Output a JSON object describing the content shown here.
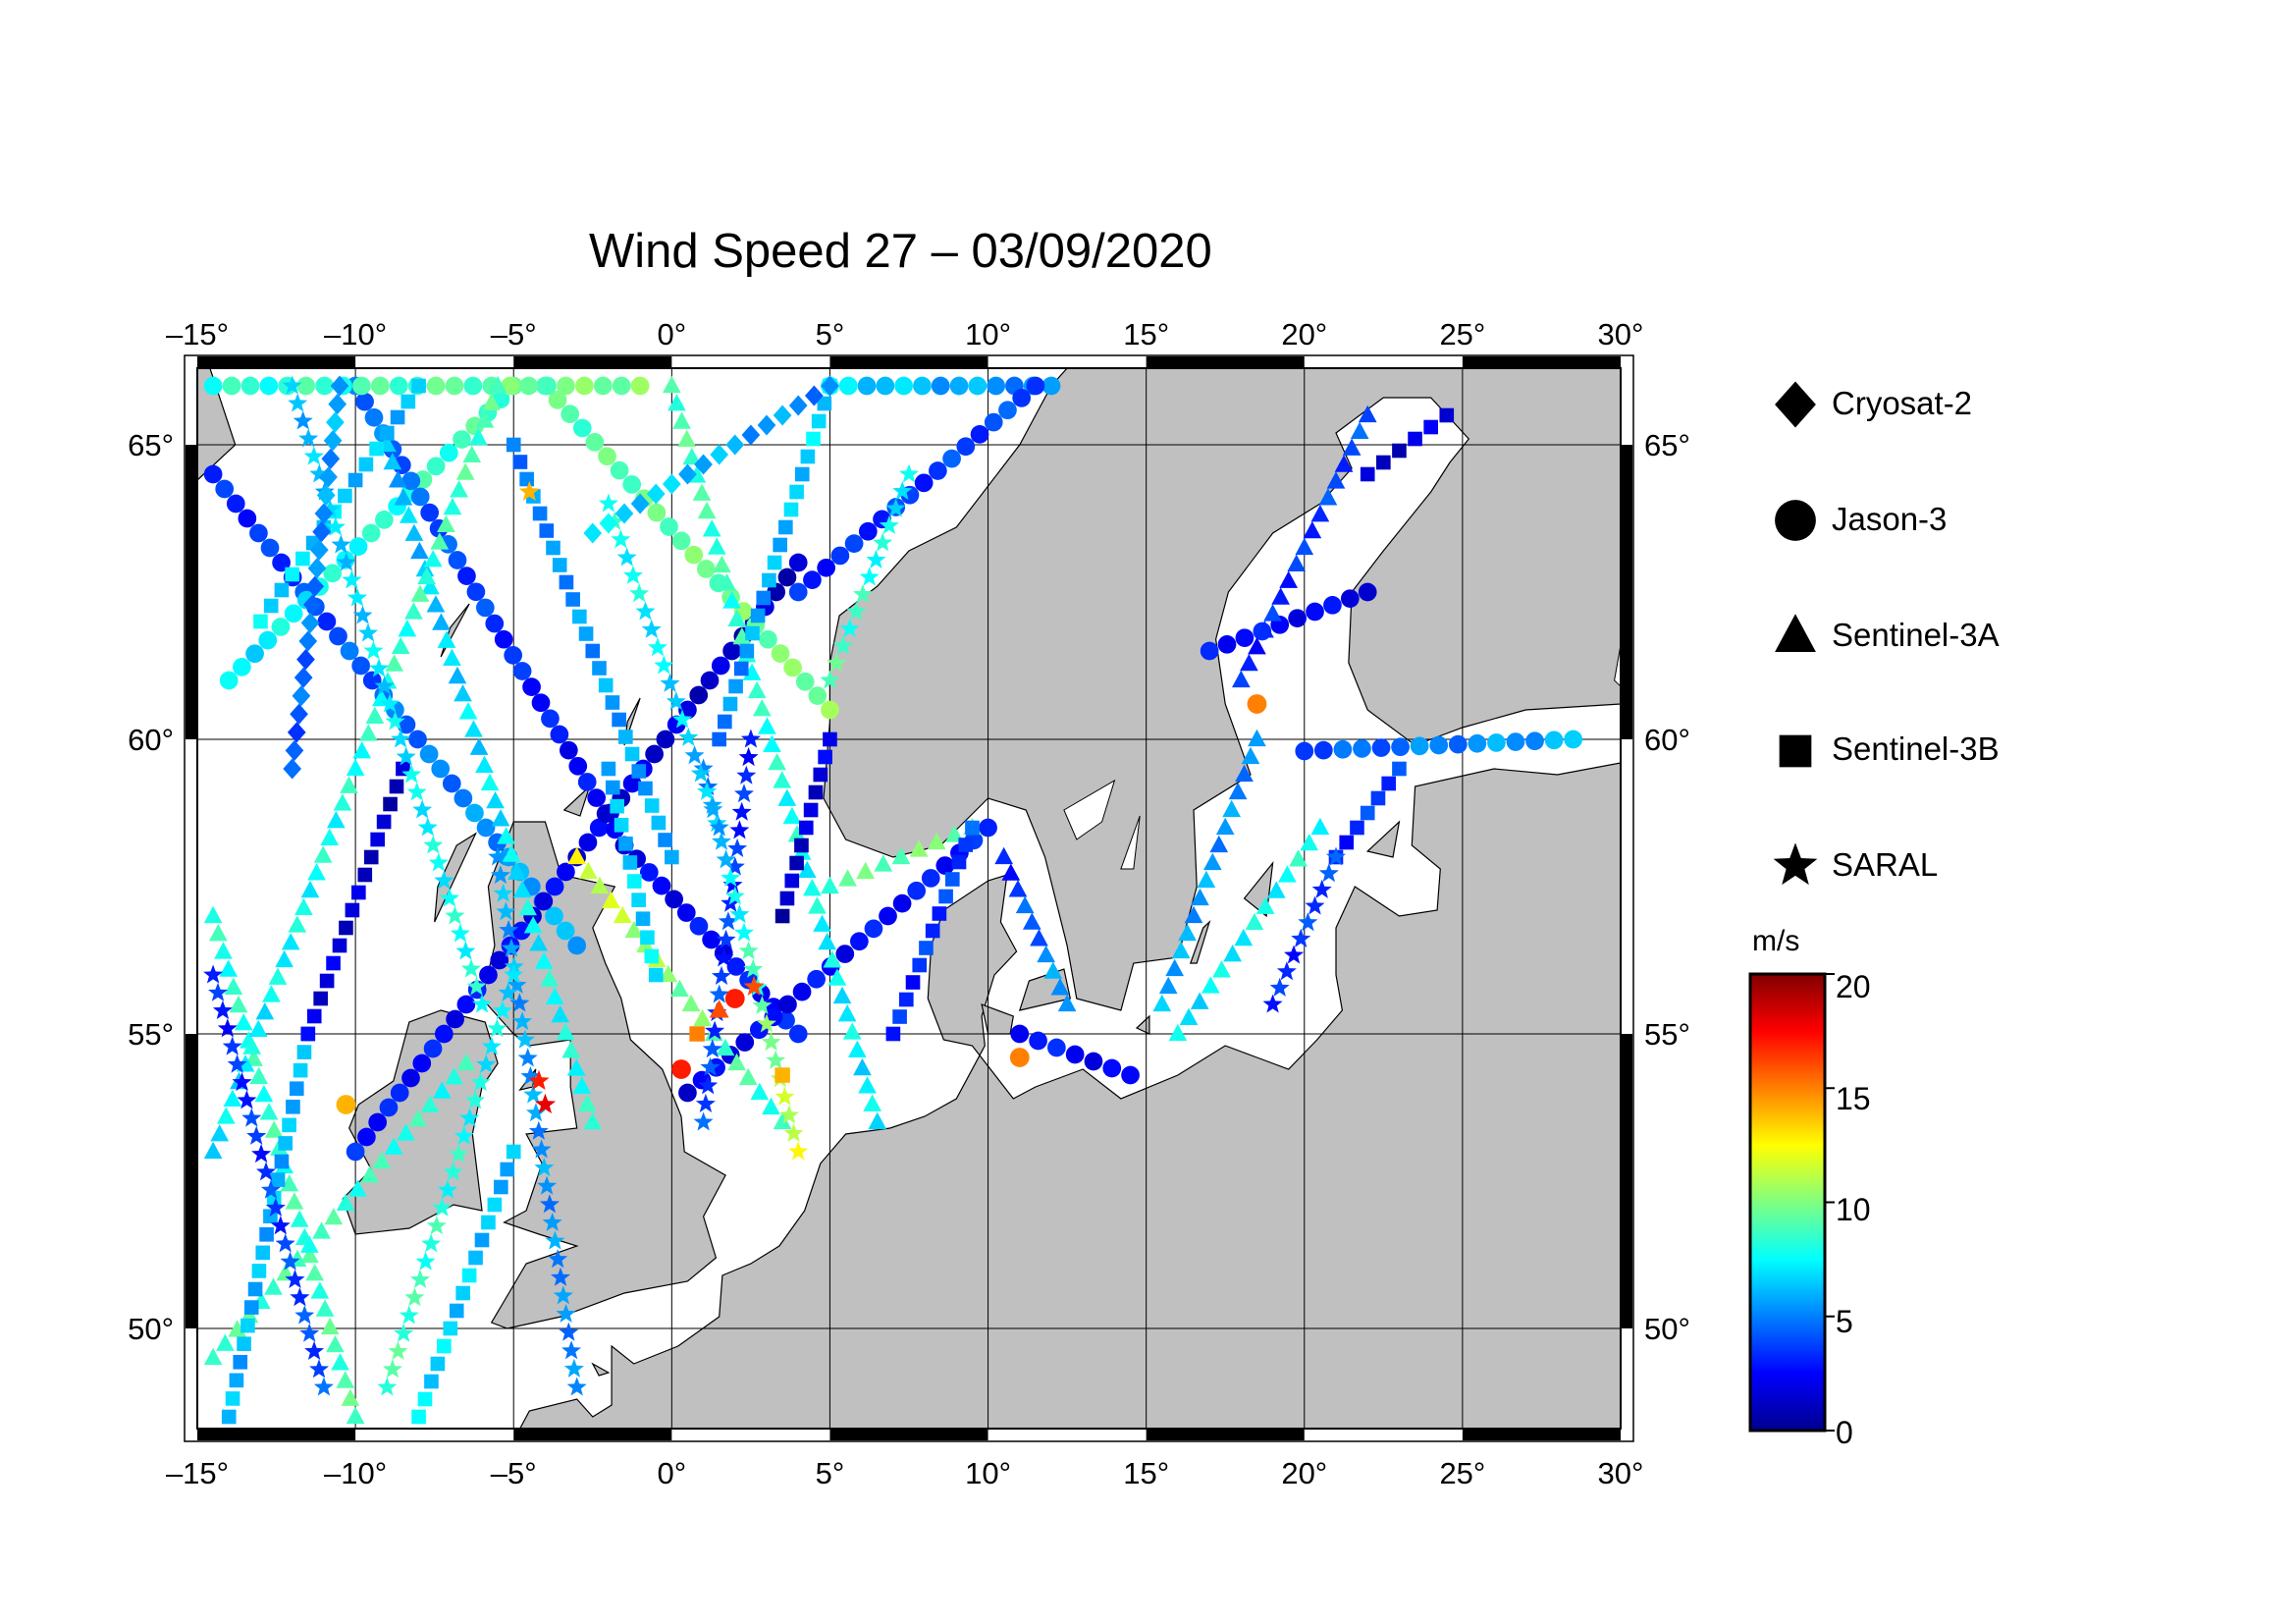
{
  "title": "Wind Speed 27 – 03/09/2020",
  "map": {
    "lon_range": [
      -15,
      30
    ],
    "lat_range": [
      48.3,
      66.3
    ],
    "lon_ticks": [
      -15,
      -10,
      -5,
      0,
      5,
      10,
      15,
      20,
      25,
      30
    ],
    "lat_ticks": [
      50,
      55,
      60,
      65
    ],
    "lon_tick_labels": [
      "–15°",
      "–10°",
      "–5°",
      "0°",
      "5°",
      "10°",
      "15°",
      "20°",
      "25°",
      "30°"
    ],
    "lat_tick_labels": [
      "50°",
      "55°",
      "60°",
      "65°"
    ],
    "land_color": "#c0c0c0",
    "sea_color": "#ffffff",
    "grid": true
  },
  "legend": {
    "items": [
      {
        "label": "Cryosat-2",
        "marker": "diamond-icon"
      },
      {
        "label": "Jason-3",
        "marker": "circle-icon"
      },
      {
        "label": "Sentinel-3A",
        "marker": "triangle-icon"
      },
      {
        "label": "Sentinel-3B",
        "marker": "square-icon"
      },
      {
        "label": "SARAL",
        "marker": "star-icon"
      }
    ]
  },
  "colorbar": {
    "unit": "m/s",
    "min": 0,
    "max": 20,
    "ticks": [
      0,
      5,
      10,
      15,
      20
    ],
    "tick_labels": [
      "0",
      "5",
      "10",
      "15",
      "20"
    ],
    "colors": [
      "#00008f",
      "#0000ff",
      "#0080ff",
      "#00ffff",
      "#80ff80",
      "#ffff00",
      "#ff8000",
      "#ff0000",
      "#800000"
    ]
  },
  "chart_data": {
    "type": "scatter",
    "title": "Wind Speed 27 – 03/09/2020",
    "xlabel": "",
    "ylabel": "",
    "xlim": [
      -15,
      30
    ],
    "ylim": [
      48.3,
      66.3
    ],
    "series": [
      {
        "name": "Jason-3",
        "marker": "circle",
        "tracks": [
          {
            "from": [
              -14.5,
              64.5
            ],
            "to": [
              -3.0,
              56.5
            ],
            "v0": 3,
            "v1": 6
          },
          {
            "from": [
              -14.0,
              61.0
            ],
            "to": [
              -5.0,
              66.0
            ],
            "v0": 7,
            "v1": 9
          },
          {
            "from": [
              -10.0,
              53.0
            ],
            "to": [
              4.0,
              63.0
            ],
            "v0": 3,
            "v1": 1
          },
          {
            "from": [
              -10.0,
              66.0
            ],
            "to": [
              -1.5,
              58.2
            ],
            "v0": 5,
            "v1": 2
          },
          {
            "from": [
              -1.5,
              58.2
            ],
            "to": [
              4.0,
              55.0
            ],
            "v0": 2,
            "v1": 3
          },
          {
            "from": [
              0.5,
              54.0
            ],
            "to": [
              10.0,
              58.5
            ],
            "v0": 2,
            "v1": 3
          },
          {
            "from": [
              -4.0,
              66.0
            ],
            "to": [
              5.0,
              60.5
            ],
            "v0": 9,
            "v1": 10
          },
          {
            "from": [
              5.0,
              66.0
            ],
            "to": [
              12.0,
              66.0
            ],
            "v0": 7,
            "v1": 5
          },
          {
            "from": [
              4.0,
              62.5
            ],
            "to": [
              11.5,
              66.0
            ],
            "v0": 3,
            "v1": 4
          },
          {
            "from": [
              17.0,
              61.5
            ],
            "to": [
              22.0,
              62.5
            ],
            "v0": 3,
            "v1": 2
          },
          {
            "from": [
              20.0,
              59.8
            ],
            "to": [
              28.5,
              60.0
            ],
            "v0": 4,
            "v1": 6
          },
          {
            "from": [
              11.0,
              55.0
            ],
            "to": [
              14.5,
              54.3
            ],
            "v0": 3,
            "v1": 2
          },
          {
            "from": [
              -14.5,
              66.0
            ],
            "to": [
              -1.0,
              66.0
            ],
            "v0": 8,
            "v1": 10
          }
        ]
      },
      {
        "name": "Sentinel-3A",
        "marker": "triangle",
        "tracks": [
          {
            "from": [
              -14.5,
              57.0
            ],
            "to": [
              -10.0,
              48.5
            ],
            "v0": 8,
            "v1": 9
          },
          {
            "from": [
              -9.0,
              65.0
            ],
            "to": [
              -2.5,
              53.5
            ],
            "v0": 6,
            "v1": 8
          },
          {
            "from": [
              -3.0,
              58.0
            ],
            "to": [
              3.5,
              53.5
            ],
            "v0": 12,
            "v1": 8
          },
          {
            "from": [
              0.0,
              66.0
            ],
            "to": [
              6.5,
              53.5
            ],
            "v0": 9,
            "v1": 7
          },
          {
            "from": [
              -14.5,
              53.0
            ],
            "to": [
              -5.5,
              66.0
            ],
            "v0": 7,
            "v1": 9
          },
          {
            "from": [
              5.0,
              57.5
            ],
            "to": [
              9.5,
              58.5
            ],
            "v0": 9,
            "v1": 10
          },
          {
            "from": [
              22.0,
              65.5
            ],
            "to": [
              18.0,
              61.0
            ],
            "v0": 4,
            "v1": 3
          },
          {
            "from": [
              18.5,
              60.0
            ],
            "to": [
              15.5,
              55.5
            ],
            "v0": 5,
            "v1": 6
          },
          {
            "from": [
              16.0,
              55.0
            ],
            "to": [
              20.5,
              58.5
            ],
            "v0": 7,
            "v1": 8
          },
          {
            "from": [
              10.5,
              58.0
            ],
            "to": [
              12.5,
              55.5
            ],
            "v0": 3,
            "v1": 6
          },
          {
            "from": [
              -14.5,
              49.5
            ],
            "to": [
              -6.5,
              54.5
            ],
            "v0": 9,
            "v1": 8
          }
        ]
      },
      {
        "name": "Sentinel-3B",
        "marker": "square",
        "tracks": [
          {
            "from": [
              -14.0,
              48.5
            ],
            "to": [
              -11.5,
              55.0
            ],
            "v0": 6,
            "v1": 6
          },
          {
            "from": [
              -11.5,
              55.0
            ],
            "to": [
              -8.5,
              59.5
            ],
            "v0": 2,
            "v1": 1
          },
          {
            "from": [
              -13.0,
              62.0
            ],
            "to": [
              -8.0,
              66.0
            ],
            "v0": 7,
            "v1": 6
          },
          {
            "from": [
              -5.0,
              65.0
            ],
            "to": [
              0.0,
              58.0
            ],
            "v0": 5,
            "v1": 6
          },
          {
            "from": [
              1.5,
              60.0
            ],
            "to": [
              5.0,
              66.0
            ],
            "v0": 5,
            "v1": 7
          },
          {
            "from": [
              3.5,
              57.0
            ],
            "to": [
              5.0,
              60.0
            ],
            "v0": 1,
            "v1": 2
          },
          {
            "from": [
              7.0,
              55.0
            ],
            "to": [
              9.5,
              58.5
            ],
            "v0": 3,
            "v1": 4
          },
          {
            "from": [
              -8.0,
              48.5
            ],
            "to": [
              -5.0,
              53.0
            ],
            "v0": 7,
            "v1": 6
          },
          {
            "from": [
              22.0,
              64.5
            ],
            "to": [
              24.5,
              65.5
            ],
            "v0": 1,
            "v1": 2
          },
          {
            "from": [
              21.0,
              58.0
            ],
            "to": [
              23.0,
              59.5
            ],
            "v0": 3,
            "v1": 4
          },
          {
            "from": [
              -2.0,
              59.5
            ],
            "to": [
              -0.5,
              56.0
            ],
            "v0": 6,
            "v1": 7
          }
        ]
      },
      {
        "name": "SARAL",
        "marker": "star",
        "tracks": [
          {
            "from": [
              -14.5,
              56.0
            ],
            "to": [
              -11.0,
              49.0
            ],
            "v0": 3,
            "v1": 4
          },
          {
            "from": [
              -12.0,
              66.0
            ],
            "to": [
              -6.0,
              55.5
            ],
            "v0": 6,
            "v1": 8
          },
          {
            "from": [
              1.0,
              53.5
            ],
            "to": [
              2.5,
              60.0
            ],
            "v0": 4,
            "v1": 3
          },
          {
            "from": [
              1.0,
              59.5
            ],
            "to": [
              4.0,
              53.0
            ],
            "v0": 5,
            "v1": 12
          },
          {
            "from": [
              -5.5,
              58.0
            ],
            "to": [
              -3.0,
              49.0
            ],
            "v0": 6,
            "v1": 5
          },
          {
            "from": [
              -9.0,
              49.0
            ],
            "to": [
              -5.0,
              56.0
            ],
            "v0": 9,
            "v1": 7
          },
          {
            "from": [
              -2.0,
              64.0
            ],
            "to": [
              1.5,
              58.5
            ],
            "v0": 8,
            "v1": 6
          },
          {
            "from": [
              21.0,
              58.0
            ],
            "to": [
              19.0,
              55.5
            ],
            "v0": 4,
            "v1": 3
          },
          {
            "from": [
              7.5,
              64.5
            ],
            "to": [
              5.0,
              61.0
            ],
            "v0": 7,
            "v1": 9
          }
        ]
      },
      {
        "name": "Cryosat-2",
        "marker": "diamond",
        "tracks": [
          {
            "from": [
              -2.5,
              63.5
            ],
            "to": [
              5.0,
              66.0
            ],
            "v0": 7,
            "v1": 5
          },
          {
            "from": [
              -12.0,
              59.5
            ],
            "to": [
              -10.5,
              66.0
            ],
            "v0": 4,
            "v1": 6
          }
        ]
      }
    ],
    "highlights": [
      {
        "lon": -4.2,
        "lat": 54.2,
        "value": 17,
        "marker": "star"
      },
      {
        "lon": -4.0,
        "lat": 53.8,
        "value": 18,
        "marker": "star"
      },
      {
        "lon": 0.3,
        "lat": 54.4,
        "value": 17,
        "marker": "circle"
      },
      {
        "lon": 0.8,
        "lat": 55.0,
        "value": 15,
        "marker": "square"
      },
      {
        "lon": 1.5,
        "lat": 55.4,
        "value": 16,
        "marker": "triangle"
      },
      {
        "lon": 2.0,
        "lat": 55.6,
        "value": 17,
        "marker": "circle"
      },
      {
        "lon": 2.6,
        "lat": 55.8,
        "value": 16,
        "marker": "star"
      },
      {
        "lon": 11.0,
        "lat": 54.6,
        "value": 15,
        "marker": "circle"
      },
      {
        "lon": 18.5,
        "lat": 60.6,
        "value": 15,
        "marker": "circle"
      },
      {
        "lon": -10.3,
        "lat": 53.8,
        "value": 14,
        "marker": "circle"
      },
      {
        "lon": -4.5,
        "lat": 64.2,
        "value": 14,
        "marker": "star"
      },
      {
        "lon": 3.5,
        "lat": 54.3,
        "value": 14,
        "marker": "square"
      }
    ]
  }
}
